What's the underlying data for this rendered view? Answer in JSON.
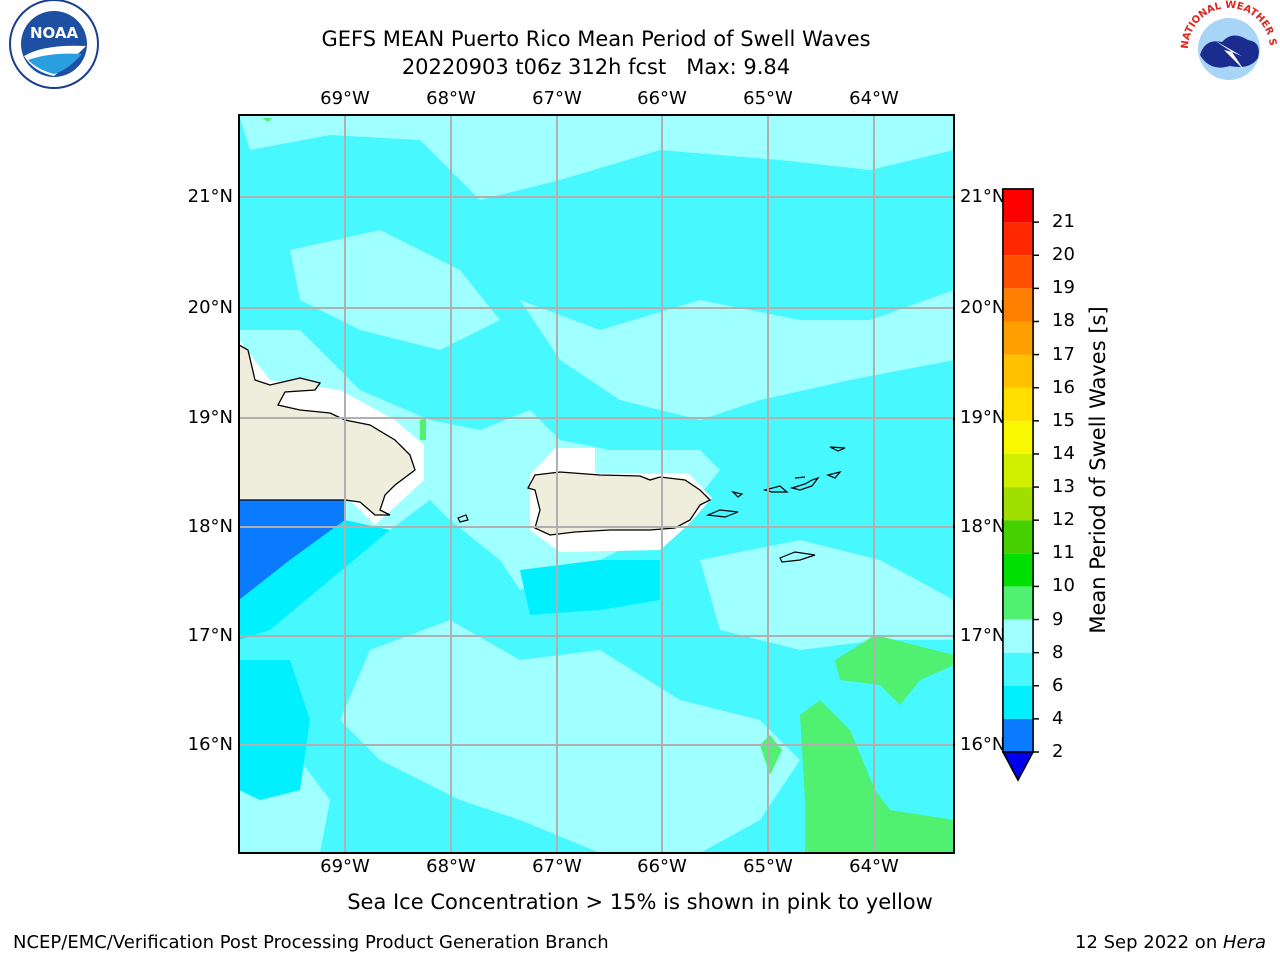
{
  "title_line1": "GEFS MEAN Puerto Rico Mean Period of Swell Waves",
  "title_line2": "20220903 t06z 312h fcst   Max: 9.84",
  "note": "Sea Ice Concentration > 15% is shown in pink to yellow",
  "footer_left": "NCEP/EMC/Verification Post Processing Product Generation Branch",
  "footer_right_date": "12 Sep 2022 on ",
  "footer_right_host": "Hera",
  "logos": {
    "left": "NOAA",
    "right": "NATIONAL WEATHER SERVICE"
  },
  "lon_labels": [
    "69°W",
    "68°W",
    "67°W",
    "66°W",
    "65°W",
    "64°W"
  ],
  "lat_labels": [
    "21°N",
    "20°N",
    "19°N",
    "18°N",
    "17°N",
    "16°N"
  ],
  "colorbar": {
    "label": "Mean Period of Swell Waves [s]",
    "ticks": [
      "2",
      "4",
      "6",
      "8",
      "9",
      "10",
      "11",
      "12",
      "13",
      "14",
      "15",
      "16",
      "17",
      "18",
      "19",
      "20",
      "21"
    ],
    "colors": [
      "#0a7bff",
      "#00f0ff",
      "#48f8ff",
      "#a0ffff",
      "#50f070",
      "#00e000",
      "#46d000",
      "#a0e000",
      "#d0f000",
      "#f8f800",
      "#ffe000",
      "#ffc000",
      "#ffa000",
      "#ff8000",
      "#ff5000",
      "#ff2800",
      "#ff0000"
    ],
    "under_color": "#0000f0"
  },
  "colors": {
    "land": "#efeddc",
    "sea_base": "#48f8ff",
    "sea_light": "#a0ffff",
    "sea_dark": "#00f0ff",
    "green_area": "#50f070",
    "grid": "#b0b0b0"
  }
}
